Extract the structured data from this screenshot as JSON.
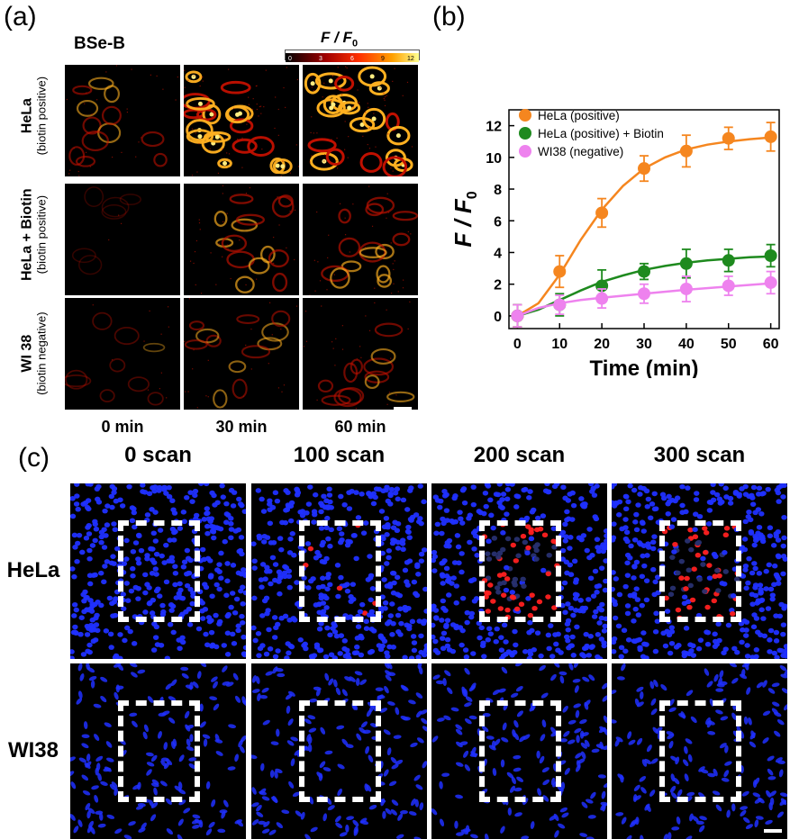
{
  "panel_a": {
    "tag": "(a)",
    "probe": "BSe-B",
    "colorbar_title_italic": "F / F",
    "colorbar_title_sub": "0",
    "colorbar_ticks": [
      "0",
      "3",
      "6",
      "9",
      "12"
    ],
    "rows": [
      {
        "line1": "HeLa",
        "line2": "(biotin positive)"
      },
      {
        "line1": "HeLa + Biotin",
        "line2": "(biotin positive)"
      },
      {
        "line1": "WI 38",
        "line2": "(biotin negative)"
      }
    ],
    "columns": [
      "0 min",
      "30 min",
      "60 min"
    ]
  },
  "panel_b": {
    "tag": "(b)",
    "chart_data": {
      "type": "line",
      "xlabel": "Time (min)",
      "ylabel": "F / F0",
      "xlim": [
        -2,
        62
      ],
      "ylim": [
        -0.8,
        13
      ],
      "xticks": [
        0,
        10,
        20,
        30,
        40,
        50,
        60
      ],
      "yticks": [
        0,
        2,
        4,
        6,
        8,
        10,
        12
      ],
      "x": [
        0,
        10,
        20,
        30,
        40,
        50,
        60
      ],
      "legend_position": "top-left",
      "series": [
        {
          "name": "HeLa (positive)",
          "color": "#f5861f",
          "values": [
            0.0,
            2.8,
            6.5,
            9.3,
            10.4,
            11.2,
            11.3
          ],
          "errors": [
            0.7,
            1.0,
            0.9,
            0.8,
            1.0,
            0.7,
            0.9
          ],
          "fit": [
            [
              0,
              0.0
            ],
            [
              5,
              0.8
            ],
            [
              10,
              2.6
            ],
            [
              15,
              4.8
            ],
            [
              20,
              6.7
            ],
            [
              25,
              8.2
            ],
            [
              30,
              9.3
            ],
            [
              35,
              10.0
            ],
            [
              40,
              10.5
            ],
            [
              45,
              10.8
            ],
            [
              50,
              11.0
            ],
            [
              55,
              11.15
            ],
            [
              60,
              11.25
            ]
          ]
        },
        {
          "name": "HeLa (positive) + Biotin",
          "color": "#1e8a1e",
          "values": [
            0.0,
            0.7,
            1.9,
            2.8,
            3.3,
            3.5,
            3.8
          ],
          "errors": [
            0.7,
            0.7,
            1.0,
            0.5,
            0.9,
            0.7,
            0.7
          ],
          "fit": [
            [
              0,
              0.0
            ],
            [
              5,
              0.4
            ],
            [
              10,
              1.0
            ],
            [
              15,
              1.6
            ],
            [
              20,
              2.15
            ],
            [
              25,
              2.55
            ],
            [
              30,
              2.9
            ],
            [
              35,
              3.15
            ],
            [
              40,
              3.35
            ],
            [
              45,
              3.5
            ],
            [
              50,
              3.6
            ],
            [
              55,
              3.7
            ],
            [
              60,
              3.75
            ]
          ]
        },
        {
          "name": "WI38 (negative)",
          "color": "#ee82ee",
          "values": [
            0.0,
            0.7,
            1.1,
            1.4,
            1.7,
            1.9,
            2.1
          ],
          "errors": [
            0.7,
            0.6,
            0.6,
            0.6,
            0.8,
            0.6,
            0.7
          ],
          "fit": [
            [
              0,
              0.0
            ],
            [
              5,
              0.5
            ],
            [
              10,
              0.8
            ],
            [
              15,
              1.0
            ],
            [
              20,
              1.15
            ],
            [
              30,
              1.4
            ],
            [
              40,
              1.65
            ],
            [
              50,
              1.85
            ],
            [
              60,
              2.05
            ]
          ]
        }
      ]
    }
  },
  "panel_c": {
    "tag": "(c)",
    "columns": [
      "0 scan",
      "100 scan",
      "200 scan",
      "300 scan"
    ],
    "rows": [
      "HeLa",
      "WI38"
    ]
  },
  "colors": {
    "nucleus_blue": "#2030ff",
    "signal_red": "#ff2020",
    "heat_bright": "#ffe14a",
    "background": "#000000"
  }
}
